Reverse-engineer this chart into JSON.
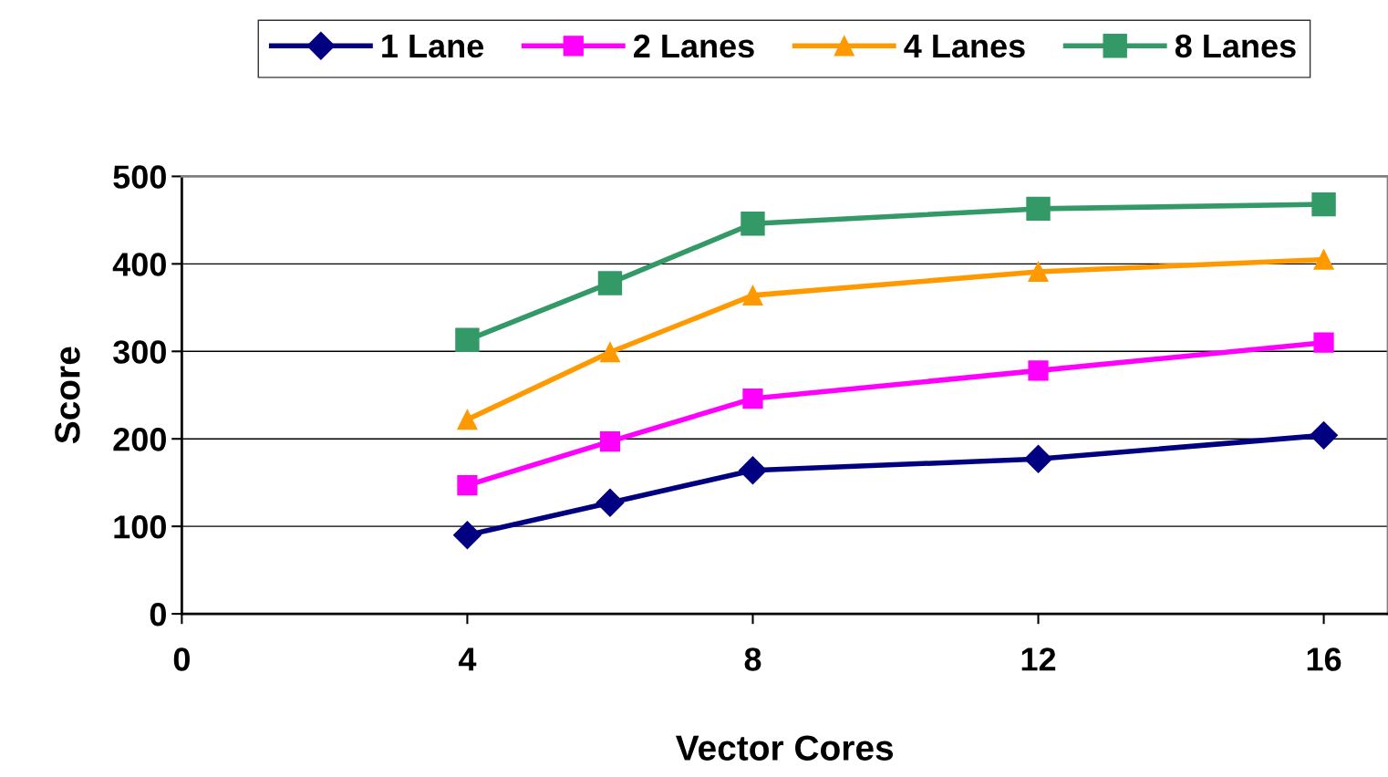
{
  "chart_data": {
    "type": "line",
    "xlabel": "Vector Cores",
    "ylabel": "Score",
    "x": [
      4,
      6,
      8,
      12,
      16
    ],
    "series": [
      {
        "name": "1 Lane",
        "color": "#000080",
        "marker": "diamond",
        "values": [
          90,
          127,
          164,
          177,
          204
        ]
      },
      {
        "name": "2 Lanes",
        "color": "#ff00ff",
        "marker": "square",
        "values": [
          147,
          197,
          246,
          278,
          310
        ]
      },
      {
        "name": "4 Lanes",
        "color": "#ff9900",
        "marker": "triangle",
        "values": [
          222,
          299,
          364,
          391,
          405
        ]
      },
      {
        "name": "8 Lanes",
        "color": "#339966",
        "marker": "square",
        "values": [
          313,
          378,
          446,
          463,
          468
        ]
      }
    ],
    "xlim": [
      0,
      16.9
    ],
    "xticks": [
      0,
      4,
      8,
      12,
      16
    ],
    "ylim": [
      0,
      500
    ],
    "yticks": [
      0,
      100,
      200,
      300,
      400,
      500
    ],
    "grid": "y",
    "legend": "top",
    "line_style": "solid"
  }
}
